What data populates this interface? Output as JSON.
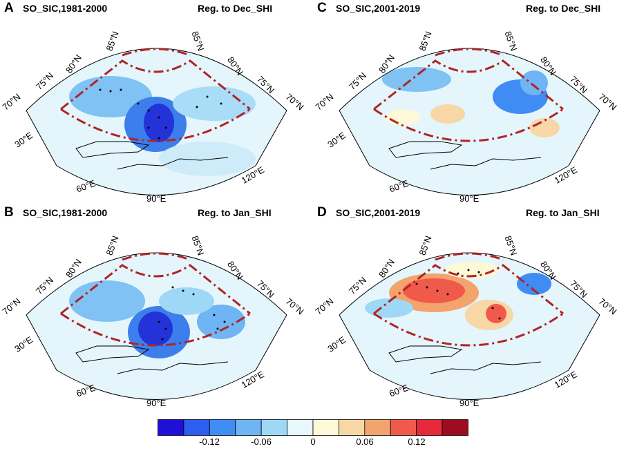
{
  "panels": [
    {
      "label": "A",
      "title": "SO_SIC,1981-2000",
      "reg": "Reg. to Dec_SHI"
    },
    {
      "label": "C",
      "title": "SO_SIC,2001-2019",
      "reg": "Reg. to Dec_SHI"
    },
    {
      "label": "B",
      "title": "SO_SIC,1981-2000",
      "reg": "Reg. to Jan_SHI"
    },
    {
      "label": "D",
      "title": "SO_SIC,2001-2019",
      "reg": "Reg. to Jan_SHI"
    }
  ],
  "lat_labels": [
    "85°N",
    "80°N",
    "75°N",
    "70°N",
    "85°N",
    "80°N",
    "75°N",
    "70°N"
  ],
  "lon_labels": [
    "30°E",
    "60°E",
    "90°E",
    "120°E"
  ],
  "colorbar": {
    "colors": [
      "#1f10d8",
      "#2c5ef0",
      "#3f8cf5",
      "#6fb4f5",
      "#9fd8f7",
      "#e8f7fc",
      "#fdf8d8",
      "#f7d7a5",
      "#f3a36c",
      "#f05a4a",
      "#e5283a",
      "#9c0d22"
    ],
    "tick_labels": [
      "-0.12",
      "-0.06",
      "0",
      "0.06",
      "0.12"
    ]
  }
}
